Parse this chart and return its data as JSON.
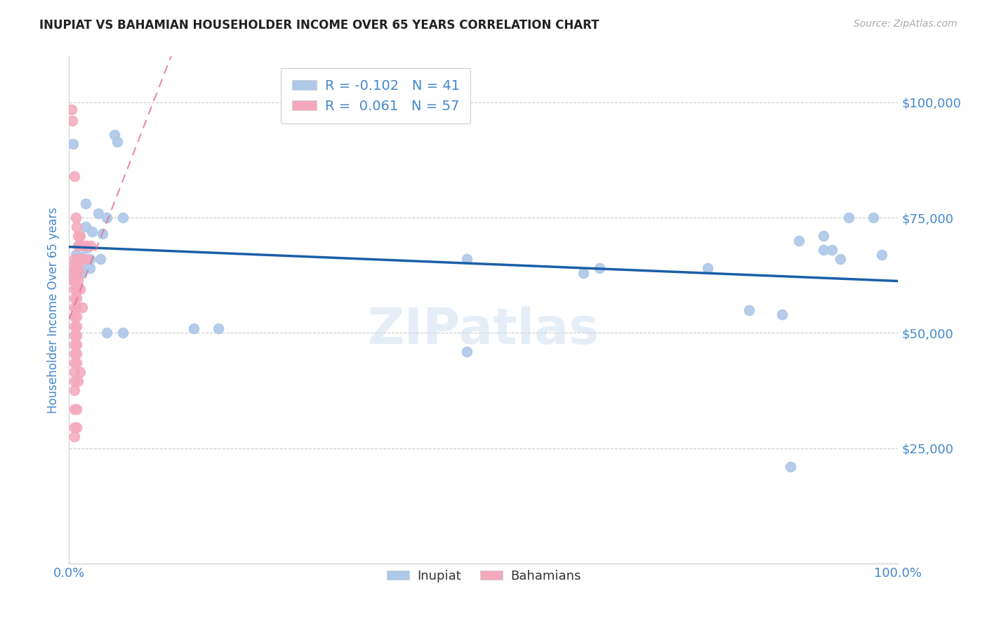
{
  "title": "INUPIAT VS BAHAMIAN HOUSEHOLDER INCOME OVER 65 YEARS CORRELATION CHART",
  "source": "Source: ZipAtlas.com",
  "ylabel": "Householder Income Over 65 years",
  "watermark": "ZIPatlas",
  "legend_inupiat_r": "-0.102",
  "legend_inupiat_n": "41",
  "legend_bahamian_r": "0.061",
  "legend_bahamian_n": "57",
  "inupiat_color": "#adc8e8",
  "bahamian_color": "#f4a8bc",
  "inupiat_line_color": "#1a5fa8",
  "bahamian_line_color": "#e07090",
  "tick_color": "#4488cc",
  "grid_color": "#cccccc",
  "inupiat_points": [
    [
      0.5,
      91000
    ],
    [
      5.5,
      93000
    ],
    [
      5.8,
      91500
    ],
    [
      2.0,
      78000
    ],
    [
      3.5,
      76000
    ],
    [
      4.5,
      75000
    ],
    [
      6.5,
      75000
    ],
    [
      2.0,
      73000
    ],
    [
      2.8,
      72000
    ],
    [
      4.0,
      71500
    ],
    [
      1.2,
      69000
    ],
    [
      2.2,
      68500
    ],
    [
      0.8,
      67000
    ],
    [
      1.5,
      66500
    ],
    [
      2.5,
      66000
    ],
    [
      3.8,
      66000
    ],
    [
      0.8,
      64000
    ],
    [
      1.5,
      64000
    ],
    [
      2.5,
      64000
    ],
    [
      0.8,
      63000
    ],
    [
      1.5,
      63000
    ],
    [
      15.0,
      51000
    ],
    [
      18.0,
      51000
    ],
    [
      4.5,
      50000
    ],
    [
      6.5,
      50000
    ],
    [
      48.0,
      66000
    ],
    [
      62.0,
      63000
    ],
    [
      64.0,
      64000
    ],
    [
      77.0,
      64000
    ],
    [
      82.0,
      55000
    ],
    [
      86.0,
      54000
    ],
    [
      88.0,
      70000
    ],
    [
      91.0,
      71000
    ],
    [
      91.0,
      68000
    ],
    [
      92.0,
      68000
    ],
    [
      93.0,
      66000
    ],
    [
      94.0,
      75000
    ],
    [
      97.0,
      75000
    ],
    [
      98.0,
      67000
    ],
    [
      87.0,
      21000
    ],
    [
      48.0,
      46000
    ]
  ],
  "bahamian_points": [
    [
      0.3,
      98500
    ],
    [
      0.4,
      96000
    ],
    [
      0.6,
      84000
    ],
    [
      0.8,
      75000
    ],
    [
      0.9,
      73000
    ],
    [
      1.1,
      71000
    ],
    [
      1.3,
      71000
    ],
    [
      1.1,
      69000
    ],
    [
      1.6,
      69000
    ],
    [
      2.1,
      69000
    ],
    [
      2.6,
      69000
    ],
    [
      0.6,
      66000
    ],
    [
      1.1,
      66000
    ],
    [
      1.6,
      66000
    ],
    [
      2.1,
      66000
    ],
    [
      0.6,
      65000
    ],
    [
      0.9,
      65000
    ],
    [
      1.1,
      64500
    ],
    [
      0.4,
      63500
    ],
    [
      0.6,
      63500
    ],
    [
      0.8,
      63500
    ],
    [
      1.1,
      63500
    ],
    [
      0.6,
      62500
    ],
    [
      0.9,
      62500
    ],
    [
      0.4,
      61500
    ],
    [
      0.6,
      61500
    ],
    [
      1.1,
      61500
    ],
    [
      0.6,
      59500
    ],
    [
      0.9,
      59500
    ],
    [
      1.3,
      59500
    ],
    [
      0.6,
      57500
    ],
    [
      0.9,
      57500
    ],
    [
      0.6,
      55500
    ],
    [
      0.9,
      55500
    ],
    [
      1.6,
      55500
    ],
    [
      0.6,
      53500
    ],
    [
      0.9,
      53500
    ],
    [
      0.6,
      51500
    ],
    [
      0.9,
      51500
    ],
    [
      0.6,
      49500
    ],
    [
      0.9,
      49500
    ],
    [
      0.6,
      47500
    ],
    [
      0.9,
      47500
    ],
    [
      0.6,
      45500
    ],
    [
      0.9,
      45500
    ],
    [
      0.6,
      43500
    ],
    [
      0.9,
      43500
    ],
    [
      0.6,
      41500
    ],
    [
      1.3,
      41500
    ],
    [
      0.6,
      39500
    ],
    [
      1.1,
      39500
    ],
    [
      0.6,
      37500
    ],
    [
      0.6,
      33500
    ],
    [
      0.9,
      33500
    ],
    [
      0.6,
      29500
    ],
    [
      0.9,
      29500
    ],
    [
      0.6,
      27500
    ]
  ],
  "xlim": [
    0,
    100
  ],
  "ylim": [
    0,
    110000
  ],
  "yticks": [
    25000,
    50000,
    75000,
    100000
  ],
  "ytick_labels": [
    "$25,000",
    "$50,000",
    "$75,000",
    "$100,000"
  ],
  "background_color": "#ffffff",
  "marker_size": 100
}
